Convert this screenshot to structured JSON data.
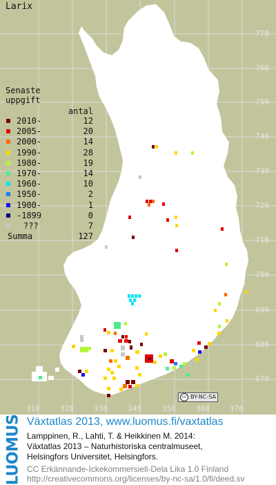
{
  "map": {
    "title": "Larix",
    "background_color": "#c2c59c",
    "land_color": "#ffffff",
    "grid_color": "#dadada",
    "y_ticks": [
      "770",
      "760",
      "750",
      "740",
      "730",
      "720",
      "710",
      "700",
      "690",
      "680",
      "670"
    ],
    "x_ticks": [
      "310",
      "320",
      "330",
      "340",
      "350",
      "360",
      "370"
    ]
  },
  "legend": {
    "heading_line1": "Senaste",
    "heading_line2": "uppgift",
    "count_heading": "antal",
    "rows": [
      {
        "label": "2010-",
        "count": "12",
        "color": "#7a0000"
      },
      {
        "label": "2005-",
        "count": "20",
        "color": "#e00000"
      },
      {
        "label": "2000-",
        "count": "14",
        "color": "#ff6a00"
      },
      {
        "label": "1990-",
        "count": "28",
        "color": "#ffd700"
      },
      {
        "label": "1980-",
        "count": "19",
        "color": "#b4f53c"
      },
      {
        "label": "1970-",
        "count": "14",
        "color": "#50eb8c"
      },
      {
        "label": "1960-",
        "count": "10",
        "color": "#00e6f0"
      },
      {
        "label": "1950-",
        "count": "2",
        "color": "#1e82f0"
      },
      {
        "label": "1900-",
        "count": "1",
        "color": "#1414e6"
      },
      {
        "label": "-1899",
        "count": "0",
        "color": "#000080"
      },
      {
        "label": "???",
        "count": "7",
        "color": "#c8c8c8"
      }
    ],
    "summa_label": "Summa",
    "summa_count": "127"
  },
  "license_badge": {
    "text": "BY-NC-SA",
    "icon": "creative-commons-icon"
  },
  "footer": {
    "logo_text": "LUOMUS",
    "headline": "Växtatlas 2013, www.luomus.fi/vaxtatlas",
    "citation_line1": "Lamppinen, R., Lahti, T. & Heikkinen M. 2014:",
    "citation_line2": "Växtatlas 2013 – Naturhistoriska centralmuseet,",
    "citation_line3": "Helsingfors Universitet, Helsingfors.",
    "license_line1": "CC Erkännande-Ickekommersiell-Dela Lika 1.0 Finland",
    "license_line2": "http://creativecommons.org/licenses/by-nc-sa/1.0/fi/deed.sv",
    "brand_color": "#1d87c9"
  }
}
